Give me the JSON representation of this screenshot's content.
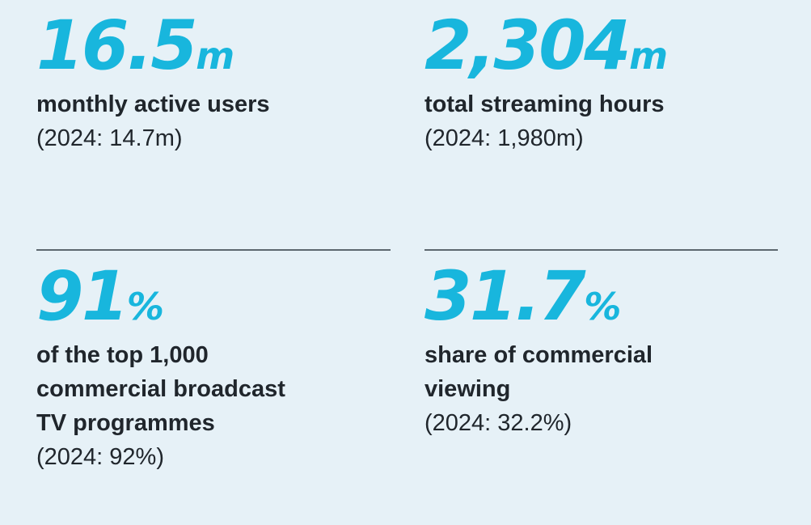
{
  "page": {
    "background_color": "#E6F1F7",
    "accent_color": "#18B6DD",
    "text_color": "#20262C",
    "divider_color": "#5D686F"
  },
  "stats": [
    {
      "value": "16.5",
      "suffix": "m",
      "label_lines": [
        "monthly active users"
      ],
      "prior": "(2024: 14.7m)"
    },
    {
      "value": "2,304",
      "suffix": "m",
      "label_lines": [
        "total streaming hours"
      ],
      "prior": "(2024: 1,980m)"
    },
    {
      "value": "91",
      "suffix": "%",
      "label_lines": [
        "of the top 1,000",
        "commercial broadcast",
        "TV programmes"
      ],
      "prior": "(2024: 92%)"
    },
    {
      "value": "31.7",
      "suffix": "%",
      "label_lines": [
        "share of commercial",
        "viewing"
      ],
      "prior": "(2024: 32.2%)"
    }
  ]
}
